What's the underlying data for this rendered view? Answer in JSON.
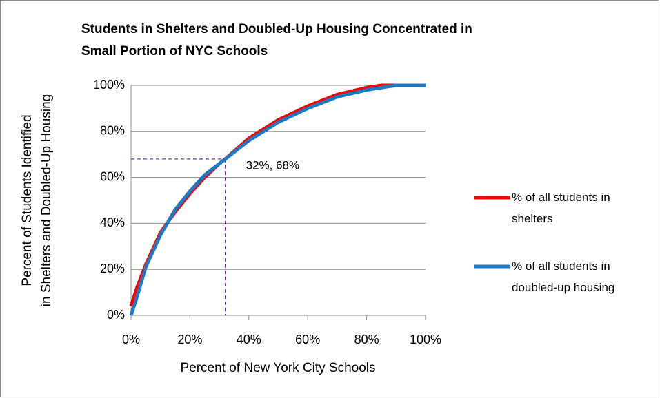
{
  "chart_data": {
    "type": "line",
    "title": [
      "Students in Shelters and Doubled-Up Housing Concentrated in",
      "Small Portion of NYC Schools"
    ],
    "xlabel": "Percent of New York City Schools",
    "ylabel": [
      "Percent of Students Identified",
      "in Shelters and Doubled-Up Housing"
    ],
    "x": [
      0,
      2,
      5,
      10,
      15,
      20,
      25,
      30,
      32,
      40,
      50,
      60,
      70,
      80,
      85,
      90,
      100
    ],
    "series": [
      {
        "name": "% of all students in shelters",
        "color": "#ff0000",
        "values": [
          4,
          12,
          22,
          36,
          45,
          53,
          60,
          66,
          68,
          77,
          85,
          91,
          96,
          99,
          100,
          100,
          100
        ]
      },
      {
        "name": "% of all students in doubled-up housing",
        "color": "#1f78c1",
        "values": [
          0,
          8,
          21,
          35,
          46,
          54,
          61,
          66,
          68,
          76,
          84,
          90,
          95,
          98,
          99,
          100,
          100
        ]
      }
    ],
    "xlim": [
      0,
      100
    ],
    "xticks": [
      {
        "value": 0,
        "label": "0%"
      },
      {
        "value": 20,
        "label": "20%"
      },
      {
        "value": 40,
        "label": "40%"
      },
      {
        "value": 60,
        "label": "60%"
      },
      {
        "value": 80,
        "label": "80%"
      },
      {
        "value": 100,
        "label": "100%"
      }
    ],
    "ylim": [
      0,
      100
    ],
    "yticks": [
      {
        "value": 0,
        "label": "0%"
      },
      {
        "value": 20,
        "label": "20%"
      },
      {
        "value": 40,
        "label": "40%"
      },
      {
        "value": 60,
        "label": "60%"
      },
      {
        "value": 80,
        "label": "80%"
      },
      {
        "value": 100,
        "label": "100%"
      }
    ],
    "grid": true,
    "legend": "right",
    "annotation": {
      "x": 32,
      "y": 68,
      "text": "32%, 68%",
      "color": "#7030a0"
    }
  }
}
